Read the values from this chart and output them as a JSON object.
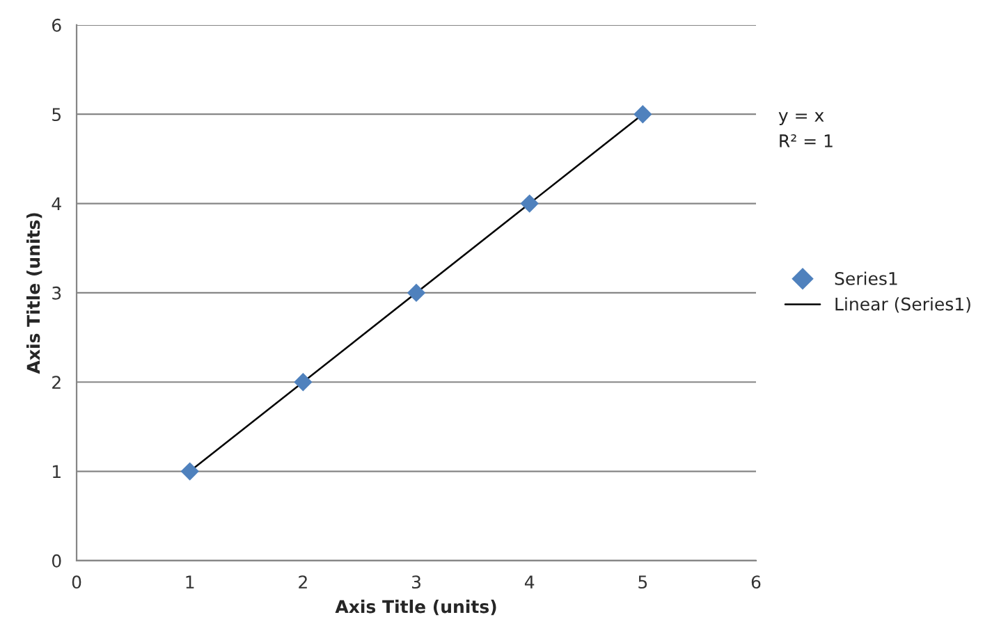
{
  "chart_data": {
    "type": "scatter",
    "xlabel": "Axis Title (units)",
    "ylabel": "Axis Title (units)",
    "x": [
      1,
      2,
      3,
      4,
      5
    ],
    "series": [
      {
        "name": "Series1",
        "color": "#4f81bd",
        "values": [
          1,
          2,
          3,
          4,
          5
        ],
        "marker": "diamond"
      },
      {
        "name": "Linear (Series1)",
        "type": "line",
        "color": "#000000",
        "x": [
          1,
          5
        ],
        "values": [
          1,
          5
        ],
        "line_style": "solid",
        "marker": "none"
      }
    ],
    "annotations": [
      "y = x",
      "R² = 1"
    ],
    "xlim": [
      0,
      6
    ],
    "ylim": [
      0,
      6
    ],
    "xticks": [
      0,
      1,
      2,
      3,
      4,
      5,
      6
    ],
    "yticks": [
      0,
      1,
      2,
      3,
      4,
      5,
      6
    ],
    "grid": "y",
    "legend": "right"
  }
}
